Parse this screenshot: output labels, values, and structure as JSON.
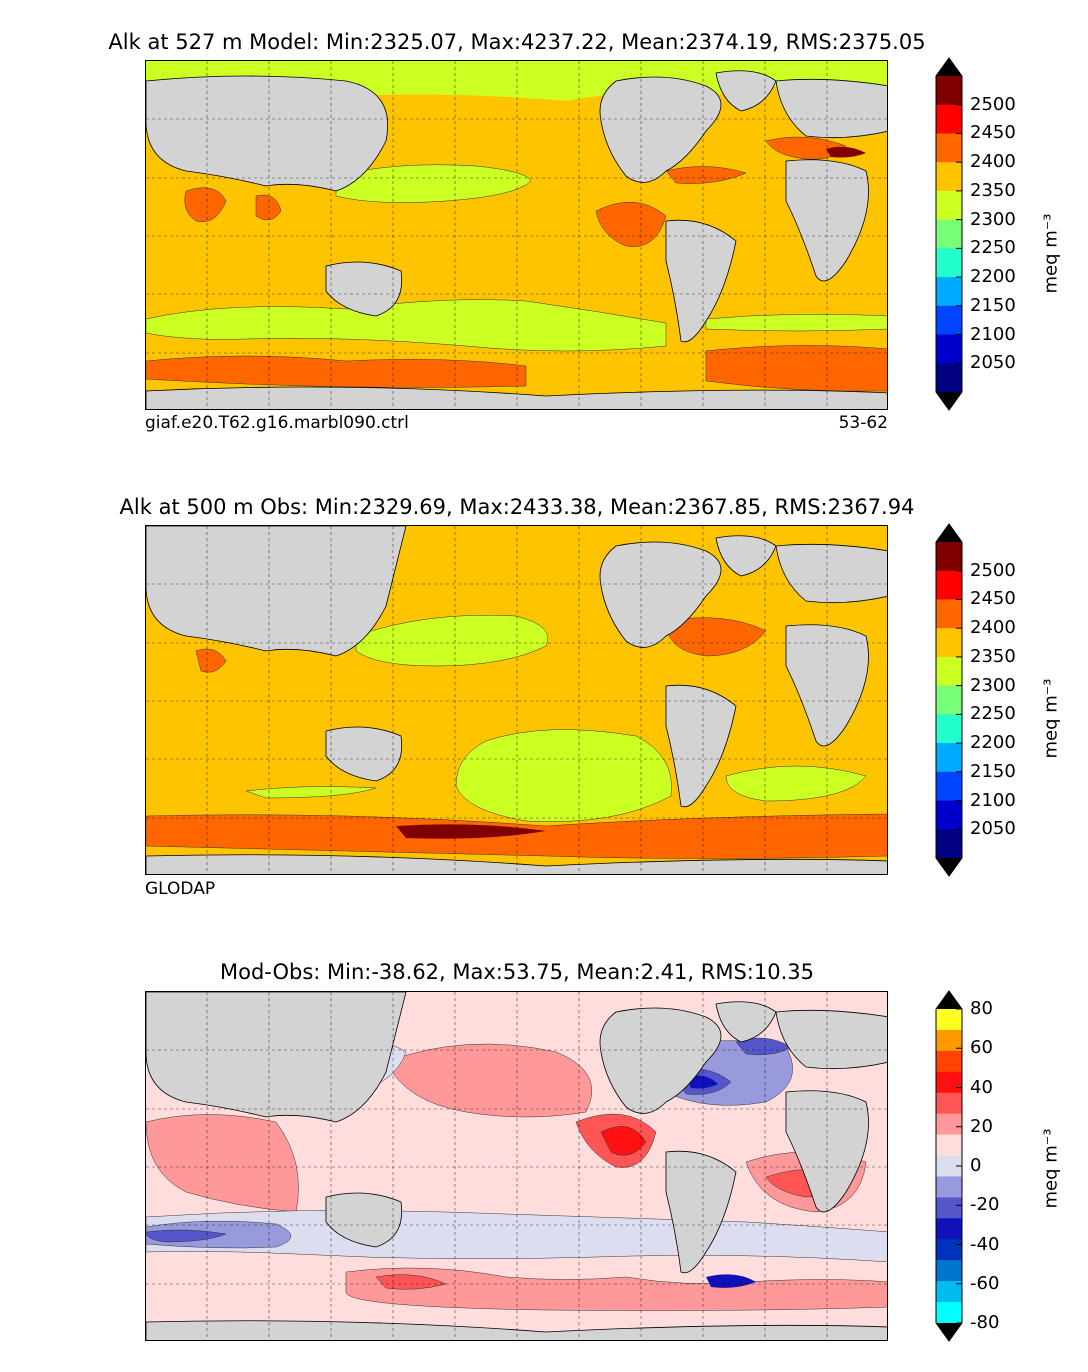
{
  "panels": [
    {
      "title": "Alk at 527 m Model: Min:2325.07, Max:4237.22, Mean:2374.19, RMS:2375.05",
      "caption_left": "giaf.e20.T62.g16.marbl090.ctrl",
      "caption_right": "53-62"
    },
    {
      "title": "Alk at 500 m Obs: Min:2329.69, Max:2433.38, Mean:2367.85, RMS:2367.94",
      "caption_left": "GLODAP",
      "caption_right": ""
    },
    {
      "title": "Mod-Obs: Min:-38.62, Max:53.75, Mean:2.41, RMS:10.35",
      "caption_left": "",
      "caption_right": ""
    }
  ],
  "colorbar_abs": {
    "unit": "meq m⁻³",
    "ticks": [
      "2500",
      "2450",
      "2400",
      "2350",
      "2300",
      "2250",
      "2200",
      "2150",
      "2100",
      "2050"
    ],
    "colors": [
      "#800000",
      "#ff0000",
      "#ff6600",
      "#ffc400",
      "#ccff22",
      "#77ff77",
      "#22ffcc",
      "#00aaff",
      "#0044ff",
      "#0000cc",
      "#000080"
    ]
  },
  "colorbar_diff": {
    "unit": "meq m⁻³",
    "ticks": [
      "80",
      "60",
      "40",
      "20",
      "0",
      "-20",
      "-40",
      "-60",
      "-80"
    ],
    "colors": [
      "#ffff22",
      "#ff9900",
      "#ff4400",
      "#ff1111",
      "#ff5555",
      "#ff9999",
      "#ffdddd",
      "#ddddf0",
      "#9999dd",
      "#5555cc",
      "#1111bb",
      "#0033bb",
      "#0077cc",
      "#00bbee",
      "#00ffff"
    ]
  },
  "map_colors": {
    "land": "#d3d3d3",
    "abs_low": "#ccff22",
    "abs_mid": "#ffc400",
    "abs_high": "#ff6600",
    "abs_top": "#800000",
    "diff_pos1": "#ffdddd",
    "diff_pos2": "#ff9999",
    "diff_pos3": "#ff5555",
    "diff_pos4": "#ff1111",
    "diff_neg1": "#ddddf0",
    "diff_neg2": "#9999dd",
    "diff_neg3": "#5555cc",
    "diff_neg4": "#1111bb"
  }
}
